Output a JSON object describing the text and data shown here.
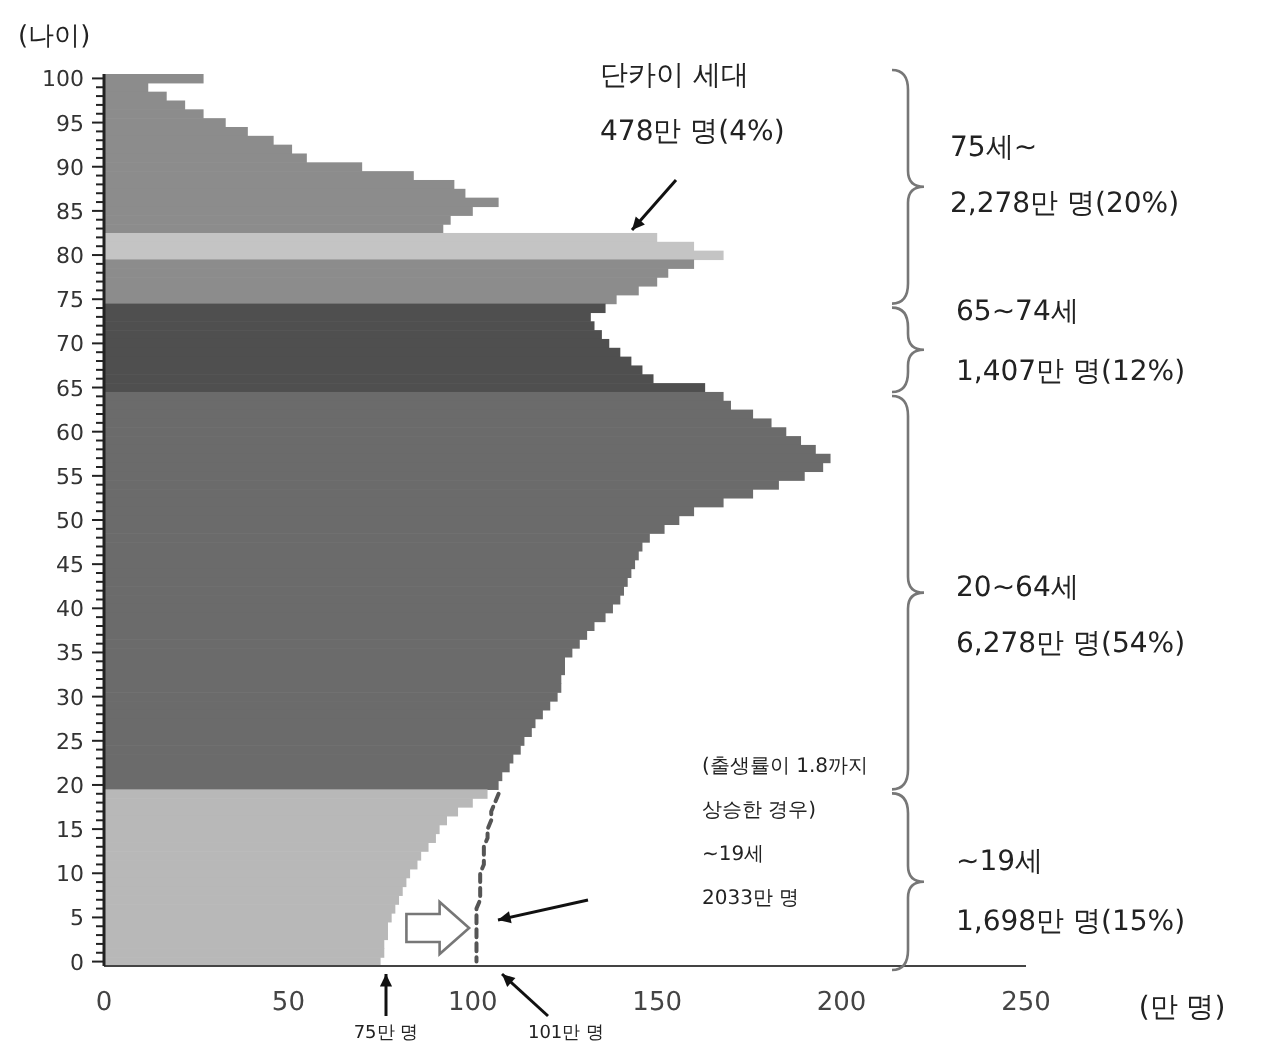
{
  "chart_data": {
    "type": "bar",
    "orientation": "horizontal",
    "xlabel": "(만 명)",
    "ylabel": "(나이)",
    "categories": [
      "100",
      null,
      null,
      null,
      null,
      "95",
      null,
      null,
      null,
      null,
      "90",
      null,
      null,
      null,
      null,
      "85",
      null,
      null,
      null,
      null,
      "80",
      null,
      null,
      null,
      null,
      "75",
      null,
      null,
      null,
      null,
      "70",
      null,
      null,
      null,
      null,
      "65",
      null,
      null,
      null,
      null,
      "60",
      null,
      null,
      null,
      null,
      "55",
      null,
      null,
      null,
      null,
      "50",
      null,
      null,
      null,
      null,
      "45",
      null,
      null,
      null,
      null,
      "40",
      null,
      null,
      null,
      null,
      "35",
      null,
      null,
      null,
      null,
      "30",
      null,
      null,
      null,
      null,
      "25",
      null,
      null,
      null,
      null,
      "20",
      null,
      null,
      null,
      null,
      "15",
      null,
      null,
      null,
      null,
      "10",
      null,
      null,
      null,
      null,
      "5",
      null,
      null,
      null,
      null,
      "0"
    ],
    "xlim": [
      0,
      250
    ],
    "xticks": [
      0,
      50,
      100,
      150,
      200,
      250
    ],
    "series": [
      {
        "values": [
          27,
          12,
          17,
          22,
          27,
          33,
          39,
          46,
          51,
          55,
          70,
          84,
          95,
          98,
          107,
          100,
          94,
          92,
          150,
          160,
          168,
          160,
          153,
          150,
          145,
          139,
          136,
          132,
          133,
          135,
          137,
          140,
          143,
          146,
          149,
          163,
          168,
          170,
          176,
          181,
          185,
          189,
          193,
          197,
          195,
          190,
          183,
          176,
          168,
          160,
          156,
          152,
          148,
          146,
          145,
          144,
          143,
          142,
          141,
          140,
          138,
          136,
          133,
          131,
          129,
          127,
          125,
          125,
          124,
          124,
          123,
          121,
          119,
          117,
          116,
          114,
          113,
          111,
          110,
          108,
          107,
          104,
          100,
          96,
          93,
          91,
          90,
          88,
          86,
          85,
          83,
          82,
          81,
          80,
          79,
          78,
          77,
          77,
          76,
          76,
          75
        ],
        "colors": [
          "#8c8c8c",
          "#8c8c8c",
          "#8c8c8c",
          "#8c8c8c",
          "#8c8c8c",
          "#8c8c8c",
          "#8c8c8c",
          "#8c8c8c",
          "#8c8c8c",
          "#8c8c8c",
          "#8c8c8c",
          "#8c8c8c",
          "#8c8c8c",
          "#8c8c8c",
          "#8c8c8c",
          "#8c8c8c",
          "#8c8c8c",
          "#8c8c8c",
          "#c4c4c4",
          "#c4c4c4",
          "#c4c4c4",
          "#8c8c8c",
          "#8c8c8c",
          "#8c8c8c",
          "#8c8c8c",
          "#8c8c8c",
          "#4f4f4f",
          "#4f4f4f",
          "#4f4f4f",
          "#4f4f4f",
          "#4f4f4f",
          "#4f4f4f",
          "#4f4f4f",
          "#4f4f4f",
          "#4f4f4f",
          "#4f4f4f",
          "#6b6b6b",
          "#6b6b6b",
          "#6b6b6b",
          "#6b6b6b",
          "#6b6b6b",
          "#6b6b6b",
          "#6b6b6b",
          "#6b6b6b",
          "#6b6b6b",
          "#6b6b6b",
          "#6b6b6b",
          "#6b6b6b",
          "#6b6b6b",
          "#6b6b6b",
          "#6b6b6b",
          "#6b6b6b",
          "#6b6b6b",
          "#6b6b6b",
          "#6b6b6b",
          "#6b6b6b",
          "#6b6b6b",
          "#6b6b6b",
          "#6b6b6b",
          "#6b6b6b",
          "#6b6b6b",
          "#6b6b6b",
          "#6b6b6b",
          "#6b6b6b",
          "#6b6b6b",
          "#6b6b6b",
          "#6b6b6b",
          "#6b6b6b",
          "#6b6b6b",
          "#6b6b6b",
          "#6b6b6b",
          "#6b6b6b",
          "#6b6b6b",
          "#6b6b6b",
          "#6b6b6b",
          "#6b6b6b",
          "#6b6b6b",
          "#6b6b6b",
          "#6b6b6b",
          "#6b6b6b",
          "#6b6b6b",
          "#b8b8b8",
          "#b8b8b8",
          "#b8b8b8",
          "#b8b8b8",
          "#b8b8b8",
          "#b8b8b8",
          "#b8b8b8",
          "#b8b8b8",
          "#b8b8b8",
          "#b8b8b8",
          "#b8b8b8",
          "#b8b8b8",
          "#b8b8b8",
          "#b8b8b8",
          "#b8b8b8",
          "#b8b8b8",
          "#b8b8b8",
          "#b8b8b8",
          "#b8b8b8",
          "#b8b8b8"
        ]
      },
      {
        "type": "line",
        "color": "#555555",
        "line_style": "dashed",
        "values": [
          null,
          null,
          null,
          null,
          null,
          null,
          null,
          null,
          null,
          null,
          null,
          null,
          null,
          null,
          null,
          null,
          null,
          null,
          null,
          null,
          null,
          null,
          null,
          null,
          null,
          null,
          null,
          null,
          null,
          null,
          null,
          null,
          null,
          null,
          null,
          null,
          null,
          null,
          null,
          null,
          null,
          null,
          null,
          null,
          null,
          null,
          null,
          null,
          null,
          null,
          null,
          null,
          null,
          null,
          null,
          null,
          null,
          null,
          null,
          null,
          null,
          null,
          null,
          null,
          null,
          null,
          null,
          null,
          null,
          null,
          null,
          null,
          null,
          null,
          null,
          null,
          null,
          null,
          null,
          null,
          null,
          107,
          106,
          105,
          105,
          104,
          104,
          103,
          103,
          103,
          102,
          102,
          102,
          102,
          101,
          101,
          101,
          101,
          101,
          101,
          101
        ]
      }
    ],
    "annotations": [
      "단카이 세대\n478만 명(4%)",
      "75세~\n2,278만 명(20%)",
      "65~74세\n1,407만 명(12%)",
      "20~64세\n6,278만 명(54%)",
      "~19세\n1,698만 명(15%)",
      "(출생률이 1.8까지\n상승한 경우)\n~19세\n2033만 명",
      "75만 명",
      "101만 명"
    ]
  }
}
